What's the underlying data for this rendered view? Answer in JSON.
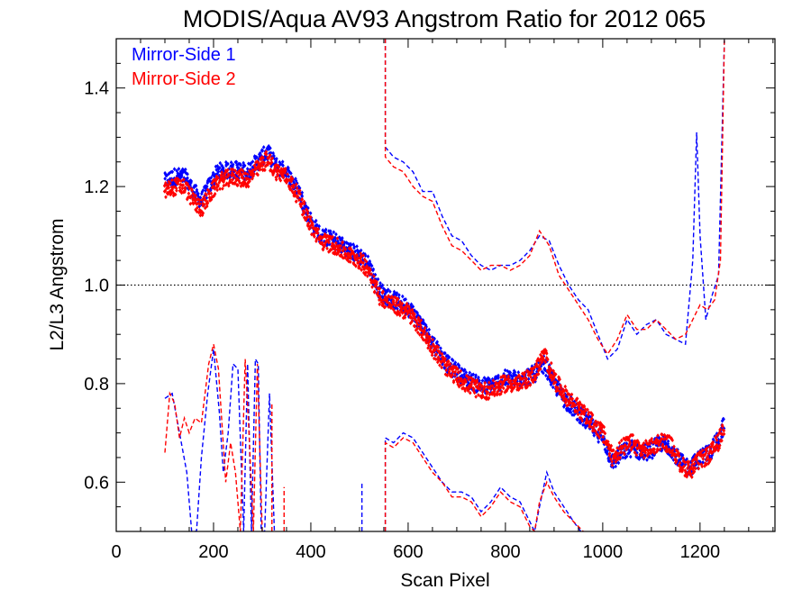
{
  "chart_data": {
    "type": "scatter",
    "title": "MODIS/Aqua AV93 Angstrom Ratio for 2012 065",
    "xlabel": "Scan Pixel",
    "ylabel": "L2/L3 Angstrom",
    "xlim": [
      0,
      1354
    ],
    "ylim": [
      0.5,
      1.5
    ],
    "xticks": [
      0,
      200,
      400,
      600,
      800,
      1000,
      1200
    ],
    "yticks": [
      0.6,
      0.8,
      1.0,
      1.2,
      1.4
    ],
    "xtick_labels": [
      "0",
      "200",
      "400",
      "600",
      "800",
      "1000",
      "1200"
    ],
    "ytick_labels": [
      "0.6",
      "0.8",
      "1.0",
      "1.2",
      "1.4"
    ],
    "reference_line": 1.0,
    "legend_position": "top-left",
    "series": [
      {
        "name": "Mirror-Side 1",
        "color": "#0000ff",
        "profile": [
          [
            100,
            1.21
          ],
          [
            120,
            1.22
          ],
          [
            140,
            1.22
          ],
          [
            160,
            1.19
          ],
          [
            175,
            1.17
          ],
          [
            190,
            1.2
          ],
          [
            210,
            1.23
          ],
          [
            240,
            1.235
          ],
          [
            270,
            1.23
          ],
          [
            290,
            1.25
          ],
          [
            310,
            1.27
          ],
          [
            330,
            1.24
          ],
          [
            350,
            1.23
          ],
          [
            375,
            1.19
          ],
          [
            400,
            1.13
          ],
          [
            420,
            1.1
          ],
          [
            450,
            1.09
          ],
          [
            480,
            1.07
          ],
          [
            500,
            1.06
          ],
          [
            520,
            1.04
          ],
          [
            540,
            0.99
          ],
          [
            560,
            0.975
          ],
          [
            580,
            0.965
          ],
          [
            600,
            0.955
          ],
          [
            620,
            0.93
          ],
          [
            640,
            0.9
          ],
          [
            660,
            0.87
          ],
          [
            680,
            0.84
          ],
          [
            700,
            0.825
          ],
          [
            720,
            0.81
          ],
          [
            740,
            0.8
          ],
          [
            760,
            0.795
          ],
          [
            780,
            0.8
          ],
          [
            800,
            0.81
          ],
          [
            830,
            0.81
          ],
          [
            860,
            0.82
          ],
          [
            880,
            0.84
          ],
          [
            900,
            0.8
          ],
          [
            920,
            0.77
          ],
          [
            940,
            0.75
          ],
          [
            960,
            0.73
          ],
          [
            980,
            0.71
          ],
          [
            1000,
            0.69
          ],
          [
            1020,
            0.64
          ],
          [
            1040,
            0.66
          ],
          [
            1060,
            0.67
          ],
          [
            1080,
            0.66
          ],
          [
            1100,
            0.665
          ],
          [
            1120,
            0.68
          ],
          [
            1140,
            0.67
          ],
          [
            1160,
            0.64
          ],
          [
            1180,
            0.63
          ],
          [
            1200,
            0.65
          ],
          [
            1220,
            0.66
          ],
          [
            1240,
            0.69
          ],
          [
            1250,
            0.72
          ]
        ],
        "upper_dashed": [
          [
            553,
            1.5
          ],
          [
            553,
            1.28
          ],
          [
            570,
            1.26
          ],
          [
            590,
            1.25
          ],
          [
            610,
            1.23
          ],
          [
            630,
            1.19
          ],
          [
            650,
            1.19
          ],
          [
            670,
            1.14
          ],
          [
            690,
            1.1
          ],
          [
            710,
            1.09
          ],
          [
            730,
            1.06
          ],
          [
            750,
            1.04
          ],
          [
            770,
            1.03
          ],
          [
            790,
            1.04
          ],
          [
            810,
            1.04
          ],
          [
            830,
            1.05
          ],
          [
            850,
            1.07
          ],
          [
            870,
            1.1
          ],
          [
            890,
            1.09
          ],
          [
            910,
            1.04
          ],
          [
            930,
            1.0
          ],
          [
            950,
            0.97
          ],
          [
            970,
            0.95
          ],
          [
            990,
            0.9
          ],
          [
            1010,
            0.85
          ],
          [
            1030,
            0.87
          ],
          [
            1050,
            0.93
          ],
          [
            1070,
            0.9
          ],
          [
            1090,
            0.92
          ],
          [
            1110,
            0.93
          ],
          [
            1130,
            0.9
          ],
          [
            1150,
            0.89
          ],
          [
            1170,
            0.88
          ],
          [
            1185,
            1.05
          ],
          [
            1193,
            1.31
          ],
          [
            1200,
            1.1
          ],
          [
            1212,
            0.93
          ],
          [
            1225,
            0.98
          ],
          [
            1238,
            1.02
          ],
          [
            1250,
            1.5
          ]
        ],
        "lower_dashed": [
          [
            100,
            0.77
          ],
          [
            115,
            0.78
          ],
          [
            130,
            0.7
          ],
          [
            145,
            0.62
          ],
          [
            155,
            0.5
          ],
          [
            165,
            0.5
          ],
          [
            175,
            0.65
          ],
          [
            188,
            0.78
          ],
          [
            200,
            0.87
          ],
          [
            212,
            0.74
          ],
          [
            220,
            0.62
          ],
          [
            230,
            0.7
          ],
          [
            240,
            0.84
          ],
          [
            250,
            0.83
          ],
          [
            262,
            0.5
          ],
          [
            270,
            0.84
          ],
          [
            278,
            0.5
          ],
          [
            286,
            0.85
          ],
          [
            292,
            0.84
          ],
          [
            298,
            0.5
          ],
          [
            305,
            0.5
          ],
          [
            315,
            0.78
          ],
          [
            325,
            0.5
          ]
        ],
        "lower_spikes": [
          [
            505,
            0.5,
            0.6
          ]
        ],
        "lower_dashed2": [
          [
            553,
            0.5
          ],
          [
            553,
            0.69
          ],
          [
            570,
            0.68
          ],
          [
            590,
            0.7
          ],
          [
            610,
            0.69
          ],
          [
            630,
            0.66
          ],
          [
            650,
            0.63
          ],
          [
            670,
            0.6
          ],
          [
            690,
            0.58
          ],
          [
            710,
            0.58
          ],
          [
            730,
            0.57
          ],
          [
            750,
            0.54
          ],
          [
            770,
            0.56
          ],
          [
            790,
            0.59
          ],
          [
            810,
            0.57
          ],
          [
            830,
            0.56
          ],
          [
            850,
            0.52
          ],
          [
            860,
            0.5
          ],
          [
            870,
            0.55
          ],
          [
            885,
            0.62
          ],
          [
            900,
            0.58
          ],
          [
            920,
            0.55
          ],
          [
            940,
            0.52
          ],
          [
            955,
            0.5
          ]
        ]
      },
      {
        "name": "Mirror-Side 2",
        "color": "#ff0000",
        "profile": [
          [
            100,
            1.19
          ],
          [
            120,
            1.2
          ],
          [
            140,
            1.2
          ],
          [
            160,
            1.17
          ],
          [
            175,
            1.155
          ],
          [
            190,
            1.18
          ],
          [
            210,
            1.21
          ],
          [
            240,
            1.22
          ],
          [
            270,
            1.215
          ],
          [
            290,
            1.235
          ],
          [
            310,
            1.255
          ],
          [
            330,
            1.23
          ],
          [
            350,
            1.22
          ],
          [
            375,
            1.18
          ],
          [
            400,
            1.12
          ],
          [
            420,
            1.09
          ],
          [
            450,
            1.08
          ],
          [
            480,
            1.06
          ],
          [
            500,
            1.05
          ],
          [
            520,
            1.03
          ],
          [
            540,
            0.98
          ],
          [
            560,
            0.965
          ],
          [
            580,
            0.955
          ],
          [
            600,
            0.945
          ],
          [
            620,
            0.92
          ],
          [
            640,
            0.89
          ],
          [
            660,
            0.86
          ],
          [
            680,
            0.83
          ],
          [
            700,
            0.815
          ],
          [
            720,
            0.8
          ],
          [
            740,
            0.79
          ],
          [
            760,
            0.785
          ],
          [
            780,
            0.79
          ],
          [
            800,
            0.8
          ],
          [
            830,
            0.8
          ],
          [
            860,
            0.82
          ],
          [
            880,
            0.86
          ],
          [
            900,
            0.81
          ],
          [
            920,
            0.78
          ],
          [
            940,
            0.76
          ],
          [
            960,
            0.74
          ],
          [
            980,
            0.72
          ],
          [
            1000,
            0.7
          ],
          [
            1020,
            0.65
          ],
          [
            1040,
            0.67
          ],
          [
            1060,
            0.68
          ],
          [
            1080,
            0.665
          ],
          [
            1100,
            0.67
          ],
          [
            1120,
            0.685
          ],
          [
            1140,
            0.675
          ],
          [
            1160,
            0.635
          ],
          [
            1180,
            0.625
          ],
          [
            1200,
            0.645
          ],
          [
            1220,
            0.655
          ],
          [
            1240,
            0.685
          ],
          [
            1250,
            0.715
          ]
        ],
        "upper_dashed": [
          [
            553,
            1.5
          ],
          [
            553,
            1.26
          ],
          [
            570,
            1.24
          ],
          [
            590,
            1.23
          ],
          [
            610,
            1.2
          ],
          [
            630,
            1.18
          ],
          [
            650,
            1.17
          ],
          [
            670,
            1.12
          ],
          [
            690,
            1.08
          ],
          [
            710,
            1.07
          ],
          [
            730,
            1.05
          ],
          [
            750,
            1.03
          ],
          [
            770,
            1.04
          ],
          [
            790,
            1.04
          ],
          [
            810,
            1.03
          ],
          [
            830,
            1.04
          ],
          [
            850,
            1.06
          ],
          [
            870,
            1.11
          ],
          [
            890,
            1.08
          ],
          [
            910,
            1.02
          ],
          [
            930,
            0.99
          ],
          [
            950,
            0.96
          ],
          [
            970,
            0.93
          ],
          [
            990,
            0.89
          ],
          [
            1010,
            0.86
          ],
          [
            1030,
            0.89
          ],
          [
            1050,
            0.94
          ],
          [
            1070,
            0.91
          ],
          [
            1090,
            0.91
          ],
          [
            1110,
            0.93
          ],
          [
            1130,
            0.91
          ],
          [
            1150,
            0.89
          ],
          [
            1170,
            0.9
          ],
          [
            1185,
            0.93
          ],
          [
            1200,
            0.96
          ],
          [
            1215,
            0.95
          ],
          [
            1230,
            0.97
          ],
          [
            1242,
            1.05
          ],
          [
            1250,
            1.5
          ]
        ],
        "lower_dashed": [
          [
            100,
            0.66
          ],
          [
            110,
            0.78
          ],
          [
            120,
            0.76
          ],
          [
            130,
            0.69
          ],
          [
            140,
            0.73
          ],
          [
            150,
            0.7
          ],
          [
            162,
            0.73
          ],
          [
            175,
            0.72
          ],
          [
            190,
            0.84
          ],
          [
            200,
            0.88
          ],
          [
            210,
            0.83
          ],
          [
            225,
            0.6
          ],
          [
            235,
            0.68
          ],
          [
            245,
            0.62
          ],
          [
            255,
            0.5
          ],
          [
            265,
            0.85
          ],
          [
            272,
            0.72
          ],
          [
            282,
            0.5
          ],
          [
            290,
            0.84
          ],
          [
            300,
            0.5
          ]
        ],
        "lower_spikes": [
          [
            320,
            0.5,
            0.76
          ],
          [
            345,
            0.5,
            0.59
          ]
        ],
        "lower_dashed2": [
          [
            553,
            0.5
          ],
          [
            553,
            0.68
          ],
          [
            570,
            0.67
          ],
          [
            590,
            0.69
          ],
          [
            610,
            0.68
          ],
          [
            630,
            0.65
          ],
          [
            650,
            0.62
          ],
          [
            670,
            0.6
          ],
          [
            690,
            0.57
          ],
          [
            710,
            0.57
          ],
          [
            730,
            0.56
          ],
          [
            750,
            0.53
          ],
          [
            770,
            0.55
          ],
          [
            790,
            0.58
          ],
          [
            810,
            0.56
          ],
          [
            830,
            0.55
          ],
          [
            850,
            0.51
          ],
          [
            860,
            0.5
          ],
          [
            870,
            0.56
          ],
          [
            885,
            0.6
          ],
          [
            900,
            0.57
          ],
          [
            920,
            0.54
          ],
          [
            940,
            0.52
          ],
          [
            960,
            0.5
          ]
        ]
      }
    ]
  }
}
